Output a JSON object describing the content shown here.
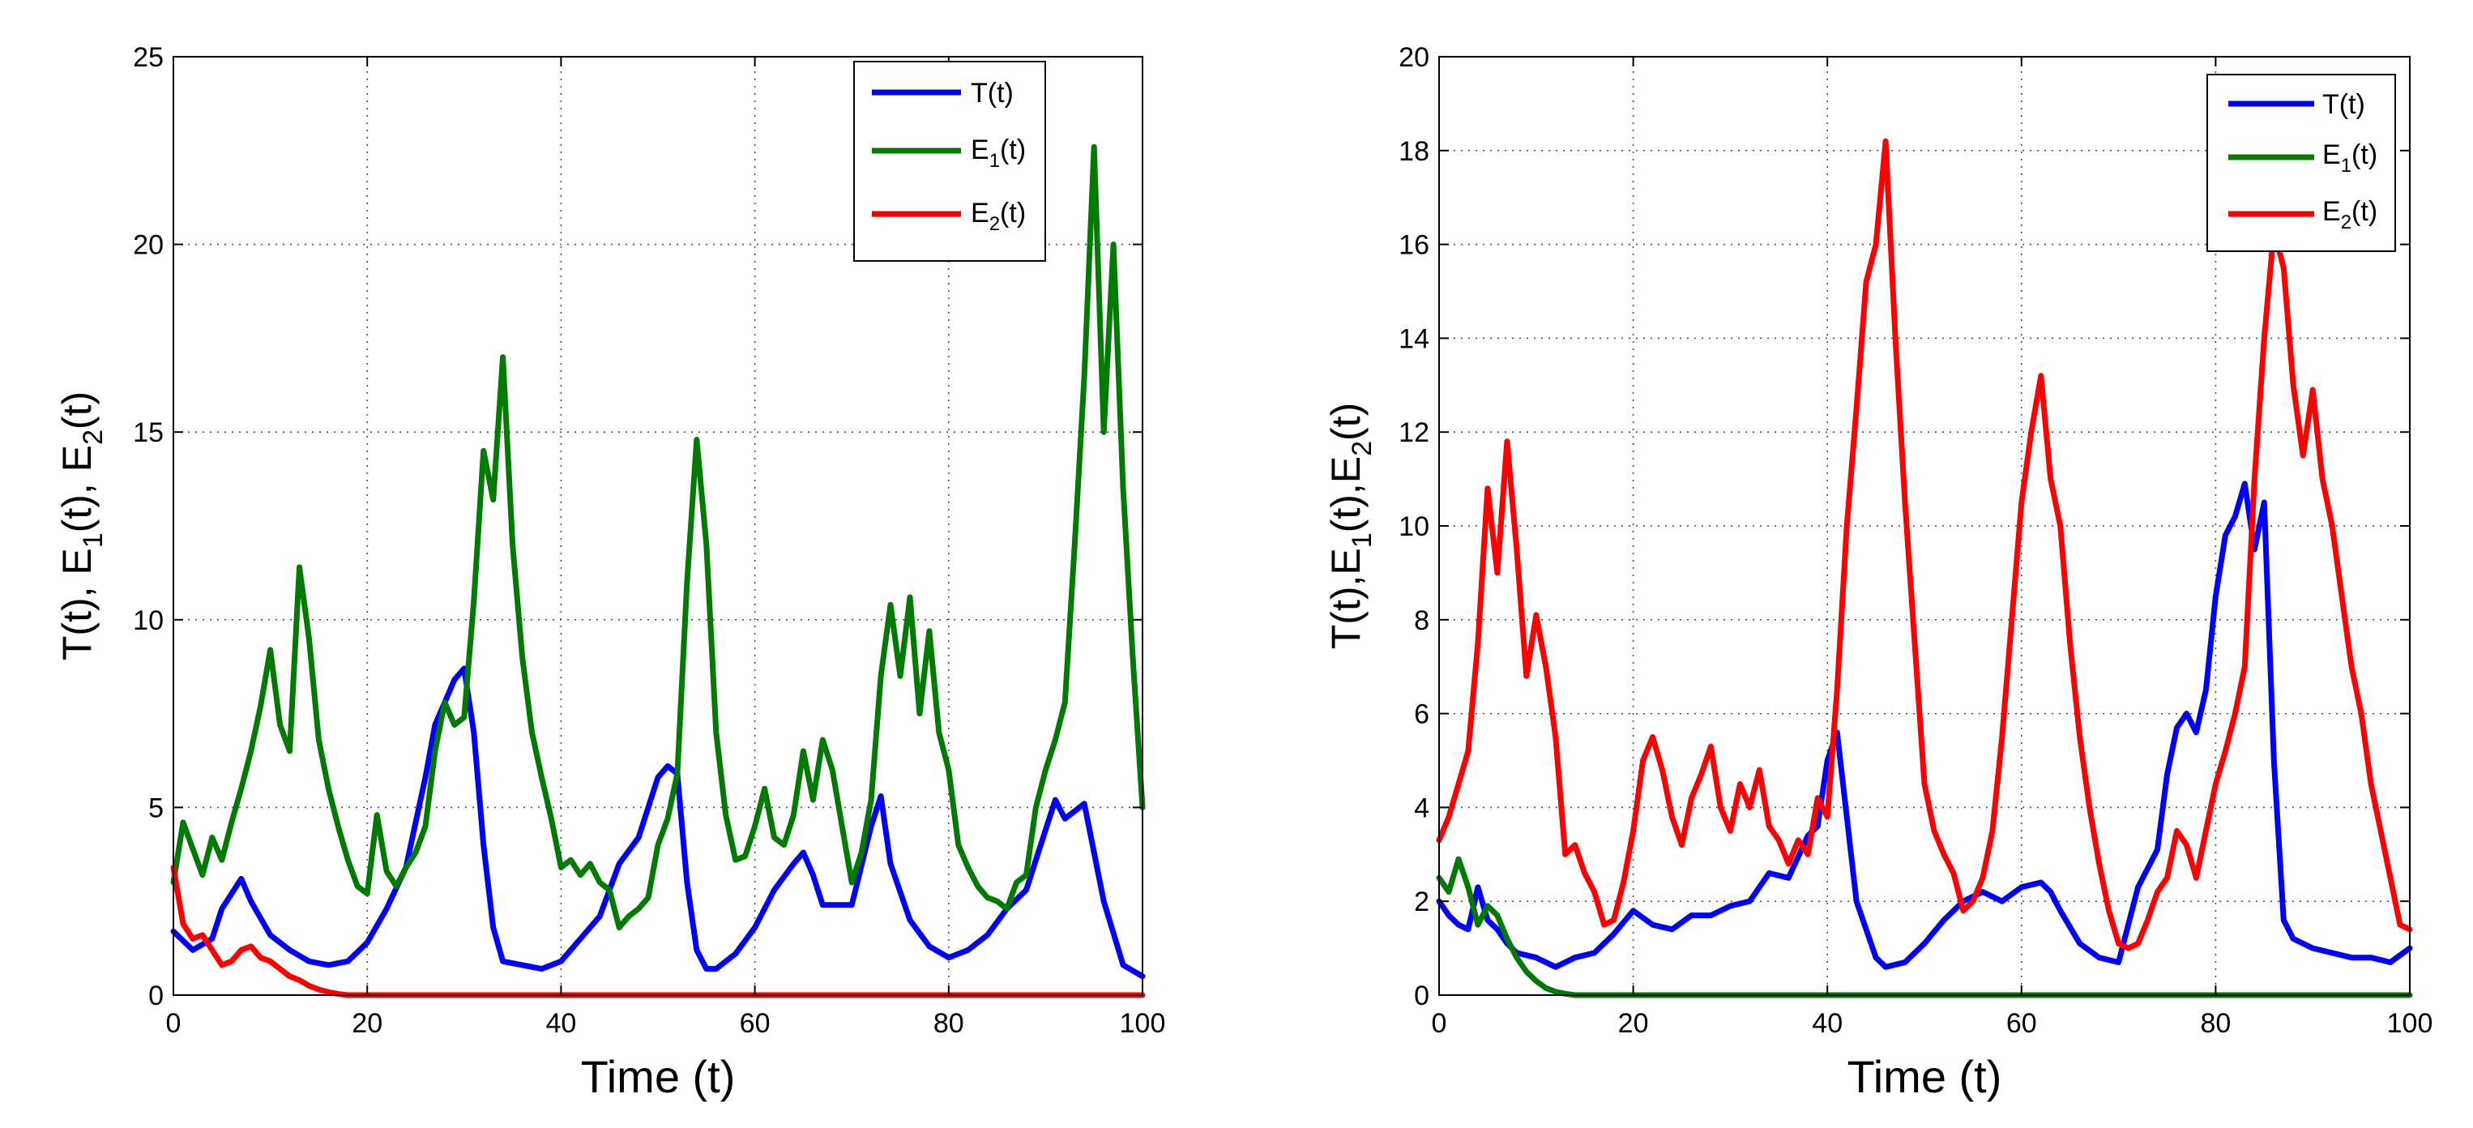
{
  "chart_data": [
    {
      "type": "line",
      "xlabel": "Time (t)",
      "ylabel": "T(t),  E1(t),  E2(t)",
      "ylabel_parts": {
        "t": "T(t),  E",
        "s1": "1",
        "m": "(t),  E",
        "s2": "2",
        "e": "(t)"
      },
      "xlim": [
        0,
        100
      ],
      "ylim": [
        0,
        25
      ],
      "xticks": [
        0,
        20,
        40,
        60,
        80,
        100
      ],
      "yticks": [
        0,
        5,
        10,
        15,
        20,
        25
      ],
      "grid": true,
      "legend_position": "top-right",
      "series": [
        {
          "name": "T(t)",
          "label_main": "T(t)",
          "label_sub": "",
          "label_tail": "",
          "color": "#0000ff",
          "x": [
            0,
            2,
            4,
            5,
            7,
            8,
            10,
            12,
            14,
            16,
            18,
            20,
            22,
            24,
            25,
            26,
            27,
            28,
            29,
            30,
            31,
            32,
            33,
            34,
            36,
            38,
            40,
            42,
            44,
            46,
            48,
            50,
            51,
            52,
            53,
            54,
            55,
            56,
            58,
            60,
            62,
            64,
            65,
            66,
            67,
            68,
            70,
            72,
            73,
            74,
            76,
            78,
            80,
            82,
            84,
            86,
            88,
            90,
            91,
            92,
            93,
            94,
            96,
            98,
            100
          ],
          "y": [
            1.7,
            1.2,
            1.5,
            2.3,
            3.1,
            2.5,
            1.6,
            1.2,
            0.9,
            0.8,
            0.9,
            1.4,
            2.3,
            3.4,
            4.6,
            5.8,
            7.2,
            7.8,
            8.4,
            8.7,
            7.0,
            4.0,
            1.8,
            0.9,
            0.8,
            0.7,
            0.9,
            1.5,
            2.1,
            3.5,
            4.2,
            5.8,
            6.1,
            5.9,
            3.0,
            1.2,
            0.7,
            0.7,
            1.1,
            1.8,
            2.8,
            3.5,
            3.8,
            3.2,
            2.4,
            2.4,
            2.4,
            4.5,
            5.3,
            3.5,
            2.0,
            1.3,
            1.0,
            1.2,
            1.6,
            2.3,
            2.8,
            4.4,
            5.2,
            4.7,
            4.9,
            5.1,
            2.5,
            0.8,
            0.5
          ]
        },
        {
          "name": "E1(t)",
          "label_main": "E",
          "label_sub": "1",
          "label_tail": "(t)",
          "color": "#007a00",
          "x": [
            0,
            1,
            2,
            3,
            4,
            5,
            6,
            7,
            8,
            9,
            10,
            11,
            12,
            13,
            14,
            15,
            16,
            17,
            18,
            19,
            20,
            21,
            22,
            23,
            24,
            25,
            26,
            27,
            28,
            29,
            30,
            31,
            32,
            33,
            34,
            35,
            36,
            37,
            38,
            39,
            40,
            41,
            42,
            43,
            44,
            45,
            46,
            47,
            48,
            49,
            50,
            51,
            52,
            53,
            54,
            55,
            56,
            57,
            58,
            59,
            60,
            61,
            62,
            63,
            64,
            65,
            66,
            67,
            68,
            69,
            70,
            71,
            72,
            73,
            74,
            75,
            76,
            77,
            78,
            79,
            80,
            81,
            82,
            83,
            84,
            85,
            86,
            87,
            88,
            89,
            90,
            91,
            92,
            93,
            94,
            95,
            96,
            97,
            98,
            99,
            100
          ],
          "y": [
            3.0,
            4.6,
            3.9,
            3.2,
            4.2,
            3.6,
            4.6,
            5.5,
            6.5,
            7.7,
            9.2,
            7.2,
            6.5,
            11.4,
            9.5,
            6.8,
            5.5,
            4.5,
            3.6,
            2.9,
            2.7,
            4.8,
            3.3,
            2.9,
            3.4,
            3.8,
            4.5,
            6.5,
            7.8,
            7.2,
            7.4,
            10.5,
            14.5,
            13.2,
            17.0,
            12.0,
            9.0,
            7.0,
            5.8,
            4.7,
            3.4,
            3.6,
            3.2,
            3.5,
            3.0,
            2.8,
            1.8,
            2.1,
            2.3,
            2.6,
            4.0,
            4.7,
            5.9,
            11.0,
            14.8,
            12.0,
            7.0,
            4.8,
            3.6,
            3.7,
            4.5,
            5.5,
            4.2,
            4.0,
            4.8,
            6.5,
            5.2,
            6.8,
            6.0,
            4.5,
            3.0,
            3.8,
            5.2,
            8.5,
            10.4,
            8.5,
            10.6,
            7.5,
            9.7,
            7.0,
            6.0,
            4.0,
            3.4,
            2.9,
            2.6,
            2.5,
            2.3,
            3.0,
            3.2,
            5.0,
            6.0,
            6.8,
            7.8,
            12.0,
            16.5,
            22.6,
            15.0,
            20.0,
            13.5,
            9.0,
            5.0
          ]
        },
        {
          "name": "E2(t)",
          "label_main": "E",
          "label_sub": "2",
          "label_tail": "(t)",
          "color": "#ff0000",
          "x": [
            0,
            1,
            2,
            3,
            4,
            5,
            6,
            7,
            8,
            9,
            10,
            11,
            12,
            13,
            14,
            15,
            16,
            17,
            18,
            20,
            30,
            40,
            50,
            60,
            70,
            80,
            90,
            100
          ],
          "y": [
            3.4,
            1.9,
            1.5,
            1.6,
            1.2,
            0.8,
            0.9,
            1.2,
            1.3,
            1.0,
            0.9,
            0.7,
            0.5,
            0.4,
            0.25,
            0.15,
            0.08,
            0.03,
            0.0,
            0.0,
            0.0,
            0.0,
            0.0,
            0.0,
            0.0,
            0.0,
            0.0,
            0.0
          ]
        }
      ]
    },
    {
      "type": "line",
      "xlabel": "Time (t)",
      "ylabel": "T(t),E1(t),E2(t)",
      "ylabel_parts": {
        "t": "T(t),E",
        "s1": "1",
        "m": "(t),E",
        "s2": "2",
        "e": "(t)"
      },
      "xlim": [
        0,
        100
      ],
      "ylim": [
        0,
        20
      ],
      "xticks": [
        0,
        20,
        40,
        60,
        80,
        100
      ],
      "yticks": [
        0,
        2,
        4,
        6,
        8,
        10,
        12,
        14,
        16,
        18,
        20
      ],
      "grid": true,
      "legend_position": "top-right",
      "series": [
        {
          "name": "T(t)",
          "label_main": "T(t)",
          "label_sub": "",
          "label_tail": "",
          "color": "#0000ff",
          "x": [
            0,
            1,
            2,
            3,
            4,
            5,
            6,
            7,
            8,
            10,
            12,
            14,
            16,
            18,
            20,
            22,
            24,
            26,
            28,
            30,
            32,
            34,
            36,
            38,
            39,
            40,
            41,
            42,
            43,
            44,
            45,
            46,
            48,
            50,
            52,
            54,
            56,
            58,
            60,
            62,
            63,
            64,
            66,
            68,
            70,
            72,
            74,
            75,
            76,
            77,
            78,
            79,
            80,
            81,
            82,
            83,
            84,
            85,
            86,
            87,
            88,
            90,
            92,
            94,
            96,
            98,
            100
          ],
          "y": [
            2.0,
            1.7,
            1.5,
            1.4,
            2.3,
            1.6,
            1.4,
            1.1,
            0.9,
            0.8,
            0.6,
            0.8,
            0.9,
            1.3,
            1.8,
            1.5,
            1.4,
            1.7,
            1.7,
            1.9,
            2.0,
            2.6,
            2.5,
            3.4,
            3.6,
            5.0,
            5.6,
            3.8,
            2.0,
            1.4,
            0.8,
            0.6,
            0.7,
            1.1,
            1.6,
            2.0,
            2.2,
            2.0,
            2.3,
            2.4,
            2.2,
            1.8,
            1.1,
            0.8,
            0.7,
            2.3,
            3.1,
            4.7,
            5.7,
            6.0,
            5.6,
            6.5,
            8.5,
            9.8,
            10.2,
            10.9,
            9.5,
            10.5,
            5.0,
            1.6,
            1.2,
            1.0,
            0.9,
            0.8,
            0.8,
            0.7,
            1.0
          ]
        },
        {
          "name": "E1(t)",
          "label_main": "E",
          "label_sub": "1",
          "label_tail": "(t)",
          "color": "#007a00",
          "x": [
            0,
            1,
            2,
            3,
            4,
            5,
            6,
            7,
            8,
            9,
            10,
            11,
            12,
            13,
            14,
            16,
            20,
            30,
            40,
            50,
            60,
            70,
            80,
            90,
            100
          ],
          "y": [
            2.5,
            2.2,
            2.9,
            2.3,
            1.5,
            1.9,
            1.7,
            1.2,
            0.8,
            0.5,
            0.3,
            0.15,
            0.07,
            0.03,
            0.0,
            0.0,
            0.0,
            0.0,
            0.0,
            0.0,
            0.0,
            0.0,
            0.0,
            0.0,
            0.0
          ]
        },
        {
          "name": "E2(t)",
          "label_main": "E",
          "label_sub": "2",
          "label_tail": "(t)",
          "color": "#ff0000",
          "x": [
            0,
            1,
            2,
            3,
            4,
            5,
            6,
            7,
            8,
            9,
            10,
            11,
            12,
            13,
            14,
            15,
            16,
            17,
            18,
            19,
            20,
            21,
            22,
            23,
            24,
            25,
            26,
            27,
            28,
            29,
            30,
            31,
            32,
            33,
            34,
            35,
            36,
            37,
            38,
            39,
            40,
            41,
            42,
            43,
            44,
            45,
            46,
            47,
            48,
            49,
            50,
            51,
            52,
            53,
            54,
            55,
            56,
            57,
            58,
            59,
            60,
            61,
            62,
            63,
            64,
            65,
            66,
            67,
            68,
            69,
            70,
            71,
            72,
            73,
            74,
            75,
            76,
            77,
            78,
            79,
            80,
            81,
            82,
            83,
            84,
            85,
            86,
            87,
            88,
            89,
            90,
            91,
            92,
            93,
            94,
            95,
            96,
            97,
            98,
            99,
            100
          ],
          "y": [
            3.3,
            3.8,
            4.5,
            5.2,
            7.5,
            10.8,
            9.0,
            11.8,
            9.5,
            6.8,
            8.1,
            7.0,
            5.5,
            3.0,
            3.2,
            2.6,
            2.2,
            1.5,
            1.6,
            2.4,
            3.5,
            5.0,
            5.5,
            4.8,
            3.8,
            3.2,
            4.2,
            4.7,
            5.3,
            4.0,
            3.5,
            4.5,
            4.0,
            4.8,
            3.6,
            3.3,
            2.8,
            3.3,
            3.0,
            4.2,
            3.8,
            6.5,
            10.0,
            12.5,
            15.2,
            16.0,
            18.2,
            14.0,
            10.5,
            7.5,
            4.5,
            3.5,
            3.0,
            2.6,
            1.8,
            2.0,
            2.5,
            3.5,
            5.5,
            8.0,
            10.5,
            12.0,
            13.2,
            11.0,
            10.0,
            7.5,
            5.5,
            4.0,
            2.8,
            1.8,
            1.1,
            1.0,
            1.1,
            1.6,
            2.2,
            2.5,
            3.5,
            3.2,
            2.5,
            3.5,
            4.5,
            5.2,
            6.0,
            7.0,
            11.0,
            14.0,
            16.3,
            15.5,
            13.0,
            11.5,
            12.9,
            11.0,
            10.0,
            8.5,
            7.0,
            6.0,
            4.5,
            3.5,
            2.5,
            1.5,
            1.4
          ]
        }
      ]
    }
  ]
}
